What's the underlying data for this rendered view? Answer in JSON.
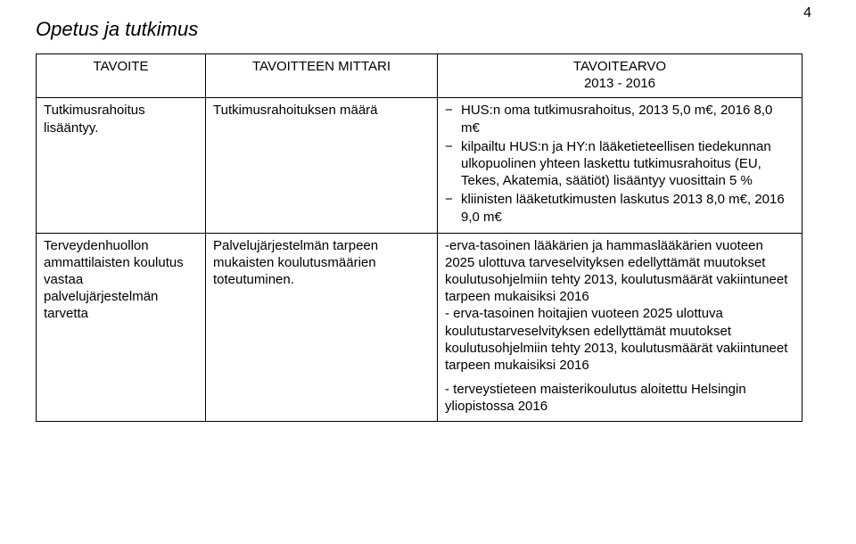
{
  "page_number": "4",
  "heading": "Opetus ja tutkimus",
  "header": {
    "c1": "TAVOITE",
    "c2": "TAVOITTEEN MITTARI",
    "c3_line1": "TAVOITEARVO",
    "c3_line2": "2013 - 2016"
  },
  "row1": {
    "c1": "Tutkimusrahoitus lisääntyy.",
    "c2": "Tutkimusrahoituksen määrä",
    "bullets": [
      "HUS:n oma tutkimusrahoitus, 2013 5,0 m€,  2016 8,0 m€",
      "kilpailtu HUS:n ja HY:n lääketieteellisen tiedekunnan ulkopuolinen yhteen laskettu  tutkimusrahoitus (EU, Tekes, Akatemia, säätiöt) lisääntyy vuosittain 5 %",
      "kliinisten lääketutkimusten laskutus 2013 8,0 m€, 2016 9,0 m€"
    ]
  },
  "row2": {
    "c1": "Terveydenhuollon ammattilaisten koulutus vastaa palvelujärjestelmän tarvetta",
    "c2": "Palvelujärjestelmän tarpeen mukaisten koulutusmäärien toteutuminen.",
    "p1": "-erva-tasoinen lääkärien ja hammaslääkärien vuoteen 2025 ulottuva tarveselvityksen edellyttämät muutokset koulutusohjelmiin tehty 2013, koulutusmäärät vakiintuneet tarpeen mukaisiksi 2016",
    "p2": "- erva-tasoinen hoitajien vuoteen 2025 ulottuva koulutustarveselvityksen edellyttämät muutokset koulutusohjelmiin tehty 2013, koulutusmäärät vakiintuneet tarpeen mukaisiksi 2016",
    "p3": "- terveystieteen maisterikoulutus aloitettu Helsingin yliopistossa 2016"
  }
}
